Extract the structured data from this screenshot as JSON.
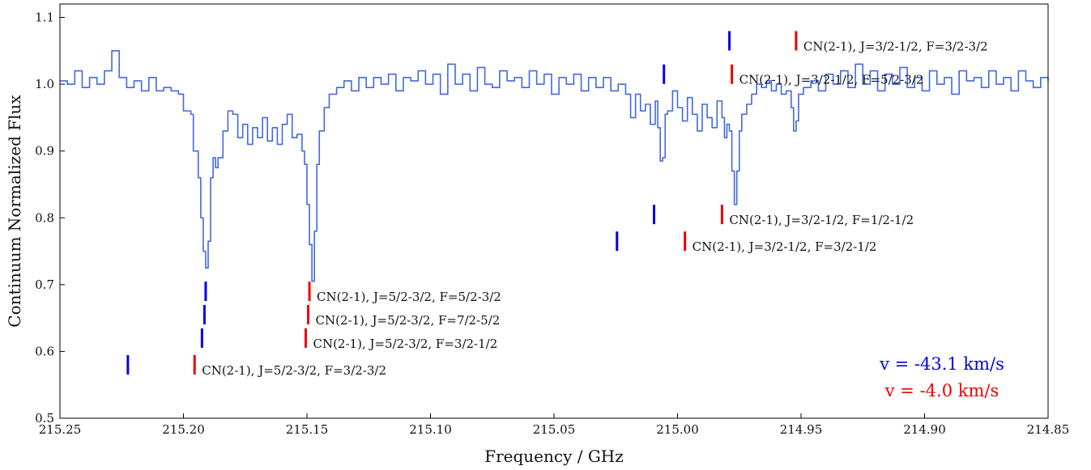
{
  "chart_data": {
    "type": "line",
    "xlabel": "Frequency / GHz",
    "ylabel": "Continuum Normalized Flux",
    "xlim": [
      215.25,
      214.85
    ],
    "ylim": [
      0.5,
      1.12
    ],
    "x_inverted": true,
    "grid": false,
    "x_ticks": [
      215.25,
      215.2,
      215.15,
      215.1,
      215.05,
      215.0,
      214.95,
      214.9,
      214.85
    ],
    "x_tick_labels": [
      "215.25",
      "215.20",
      "215.15",
      "215.10",
      "215.05",
      "215.00",
      "214.95",
      "214.90",
      "214.85"
    ],
    "y_ticks": [
      0.5,
      0.6,
      0.7,
      0.8,
      0.9,
      1.0,
      1.1
    ],
    "y_tick_labels": [
      "0.5",
      "0.6",
      "0.7",
      "0.8",
      "0.9",
      "1.0",
      "1.1"
    ],
    "series": [
      {
        "color": "#4169E1",
        "style": "steps",
        "points": [
          [
            215.25,
            1.005
          ],
          [
            215.247,
            1.0
          ],
          [
            215.244,
            1.02
          ],
          [
            215.241,
            0.995
          ],
          [
            215.238,
            1.01
          ],
          [
            215.235,
            1.0
          ],
          [
            215.232,
            1.02
          ],
          [
            215.229,
            1.05
          ],
          [
            215.226,
            1.01
          ],
          [
            215.223,
            0.995
          ],
          [
            215.22,
            1.005
          ],
          [
            215.217,
            0.99
          ],
          [
            215.214,
            1.01
          ],
          [
            215.211,
            0.99
          ],
          [
            215.208,
            0.995
          ],
          [
            215.205,
            0.99
          ],
          [
            215.202,
            0.985
          ],
          [
            215.2,
            0.96
          ],
          [
            215.197,
            0.955
          ],
          [
            215.196,
            0.9
          ],
          [
            215.195,
            0.9
          ],
          [
            215.194,
            0.86
          ],
          [
            215.193,
            0.8
          ],
          [
            215.192,
            0.75
          ],
          [
            215.191,
            0.725
          ],
          [
            215.19,
            0.765
          ],
          [
            215.189,
            0.86
          ],
          [
            215.188,
            0.89
          ],
          [
            215.187,
            0.875
          ],
          [
            215.186,
            0.89
          ],
          [
            215.184,
            0.93
          ],
          [
            215.182,
            0.96
          ],
          [
            215.18,
            0.955
          ],
          [
            215.178,
            0.92
          ],
          [
            215.176,
            0.94
          ],
          [
            215.174,
            0.91
          ],
          [
            215.172,
            0.935
          ],
          [
            215.17,
            0.92
          ],
          [
            215.168,
            0.95
          ],
          [
            215.166,
            0.915
          ],
          [
            215.164,
            0.935
          ],
          [
            215.162,
            0.91
          ],
          [
            215.16,
            0.94
          ],
          [
            215.158,
            0.955
          ],
          [
            215.156,
            0.92
          ],
          [
            215.154,
            0.925
          ],
          [
            215.152,
            0.9
          ],
          [
            215.151,
            0.88
          ],
          [
            215.15,
            0.82
          ],
          [
            215.149,
            0.76
          ],
          [
            215.148,
            0.705
          ],
          [
            215.147,
            0.78
          ],
          [
            215.146,
            0.88
          ],
          [
            215.145,
            0.93
          ],
          [
            215.143,
            0.965
          ],
          [
            215.141,
            0.985
          ],
          [
            215.138,
            0.995
          ],
          [
            215.135,
            1.005
          ],
          [
            215.132,
            0.99
          ],
          [
            215.129,
            1.01
          ],
          [
            215.126,
            0.995
          ],
          [
            215.123,
            1.01
          ],
          [
            215.12,
            1.0
          ],
          [
            215.117,
            1.015
          ],
          [
            215.114,
            0.99
          ],
          [
            215.111,
            1.01
          ],
          [
            215.108,
            1.005
          ],
          [
            215.105,
            1.02
          ],
          [
            215.102,
            1.0
          ],
          [
            215.099,
            1.015
          ],
          [
            215.096,
            0.985
          ],
          [
            215.093,
            1.03
          ],
          [
            215.09,
            1.0
          ],
          [
            215.087,
            1.015
          ],
          [
            215.084,
            0.99
          ],
          [
            215.081,
            1.025
          ],
          [
            215.078,
            1.0
          ],
          [
            215.075,
            0.995
          ],
          [
            215.072,
            1.02
          ],
          [
            215.069,
            1.005
          ],
          [
            215.066,
            1.01
          ],
          [
            215.063,
            0.995
          ],
          [
            215.06,
            1.02
          ],
          [
            215.057,
            1.0
          ],
          [
            215.054,
            1.015
          ],
          [
            215.051,
            0.985
          ],
          [
            215.048,
            1.01
          ],
          [
            215.045,
            1.0
          ],
          [
            215.042,
            1.015
          ],
          [
            215.039,
            0.99
          ],
          [
            215.036,
            1.01
          ],
          [
            215.033,
            0.995
          ],
          [
            215.03,
            1.01
          ],
          [
            215.027,
            0.99
          ],
          [
            215.024,
            1.0
          ],
          [
            215.021,
            0.985
          ],
          [
            215.019,
            0.95
          ],
          [
            215.017,
            0.985
          ],
          [
            215.015,
            0.96
          ],
          [
            215.013,
            0.97
          ],
          [
            215.011,
            0.94
          ],
          [
            215.009,
            0.975
          ],
          [
            215.008,
            0.935
          ],
          [
            215.007,
            0.885
          ],
          [
            215.006,
            0.89
          ],
          [
            215.005,
            0.955
          ],
          [
            215.004,
            0.96
          ],
          [
            215.002,
            0.99
          ],
          [
            215.0,
            0.965
          ],
          [
            214.998,
            0.945
          ],
          [
            214.996,
            0.98
          ],
          [
            214.994,
            0.955
          ],
          [
            214.992,
            0.93
          ],
          [
            214.99,
            0.97
          ],
          [
            214.988,
            0.95
          ],
          [
            214.986,
            0.935
          ],
          [
            214.984,
            0.975
          ],
          [
            214.982,
            0.95
          ],
          [
            214.981,
            0.92
          ],
          [
            214.98,
            0.94
          ],
          [
            214.979,
            0.93
          ],
          [
            214.978,
            0.87
          ],
          [
            214.977,
            0.82
          ],
          [
            214.976,
            0.87
          ],
          [
            214.975,
            0.93
          ],
          [
            214.974,
            0.955
          ],
          [
            214.972,
            0.97
          ],
          [
            214.97,
            0.985
          ],
          [
            214.968,
            1.0
          ],
          [
            214.966,
            0.995
          ],
          [
            214.964,
            1.005
          ],
          [
            214.962,
            0.99
          ],
          [
            214.96,
            1.0
          ],
          [
            214.958,
            0.985
          ],
          [
            214.956,
            0.99
          ],
          [
            214.954,
            0.965
          ],
          [
            214.953,
            0.93
          ],
          [
            214.952,
            0.945
          ],
          [
            214.951,
            0.985
          ],
          [
            214.949,
            0.995
          ],
          [
            214.946,
            1.005
          ],
          [
            214.943,
            0.99
          ],
          [
            214.94,
            1.015
          ],
          [
            214.937,
            1.0
          ],
          [
            214.934,
            1.02
          ],
          [
            214.931,
            0.995
          ],
          [
            214.928,
            1.03
          ],
          [
            214.925,
            1.0
          ],
          [
            214.922,
            1.02
          ],
          [
            214.919,
            0.99
          ],
          [
            214.916,
            1.015
          ],
          [
            214.913,
            1.0
          ],
          [
            214.91,
            1.025
          ],
          [
            214.907,
            0.995
          ],
          [
            214.904,
            1.01
          ],
          [
            214.901,
            0.99
          ],
          [
            214.898,
            1.02
          ],
          [
            214.895,
            1.0
          ],
          [
            214.892,
            1.01
          ],
          [
            214.889,
            0.985
          ],
          [
            214.886,
            1.02
          ],
          [
            214.883,
            1.005
          ],
          [
            214.88,
            1.01
          ],
          [
            214.877,
            0.995
          ],
          [
            214.874,
            1.02
          ],
          [
            214.871,
            1.0
          ],
          [
            214.868,
            1.01
          ],
          [
            214.865,
            0.99
          ],
          [
            214.862,
            1.02
          ],
          [
            214.859,
            1.005
          ],
          [
            214.856,
            0.995
          ],
          [
            214.853,
            1.01
          ],
          [
            214.85,
            1.005
          ]
        ]
      }
    ],
    "markers": [
      {
        "x": 215.2225,
        "y": 0.58,
        "color": "#0000EE"
      },
      {
        "x": 215.1955,
        "y": 0.58,
        "color": "#EE0000",
        "label": "CN(2-1), J=5/2-3/2, F=3/2-3/2"
      },
      {
        "x": 215.1925,
        "y": 0.62,
        "color": "#0000EE"
      },
      {
        "x": 215.1505,
        "y": 0.62,
        "color": "#EE0000",
        "label": "CN(2-1), J=5/2-3/2, F=3/2-1/2"
      },
      {
        "x": 215.1915,
        "y": 0.655,
        "color": "#0000EE"
      },
      {
        "x": 215.1495,
        "y": 0.655,
        "color": "#EE0000",
        "label": "CN(2-1), J=5/2-3/2, F=7/2-5/2"
      },
      {
        "x": 215.191,
        "y": 0.69,
        "color": "#0000EE"
      },
      {
        "x": 215.149,
        "y": 0.69,
        "color": "#EE0000",
        "label": "CN(2-1), J=5/2-3/2, F=5/2-3/2"
      },
      {
        "x": 215.0245,
        "y": 0.765,
        "color": "#0000EE"
      },
      {
        "x": 214.997,
        "y": 0.765,
        "color": "#EE0000",
        "label": "CN(2-1), J=3/2-1/2, F=3/2-1/2"
      },
      {
        "x": 215.0095,
        "y": 0.805,
        "color": "#0000EE"
      },
      {
        "x": 214.982,
        "y": 0.805,
        "color": "#EE0000",
        "label": "CN(2-1), J=3/2-1/2, F=1/2-1/2"
      },
      {
        "x": 215.0055,
        "y": 1.015,
        "color": "#0000EE"
      },
      {
        "x": 214.978,
        "y": 1.015,
        "color": "#EE0000",
        "label": "CN(2-1), J=3/2-1/2, F=5/2-3/2"
      },
      {
        "x": 214.979,
        "y": 1.065,
        "color": "#0000EE"
      },
      {
        "x": 214.952,
        "y": 1.065,
        "color": "#EE0000",
        "label": "CN(2-1), J=3/2-1/2, F=3/2-3/2"
      }
    ],
    "legend": {
      "position": "bottom-right",
      "entries": [
        {
          "text": "v = -43.1 km/s",
          "color": "#0000EE"
        },
        {
          "text": "v = -4.0 km/s",
          "color": "#EE0000"
        }
      ]
    }
  }
}
